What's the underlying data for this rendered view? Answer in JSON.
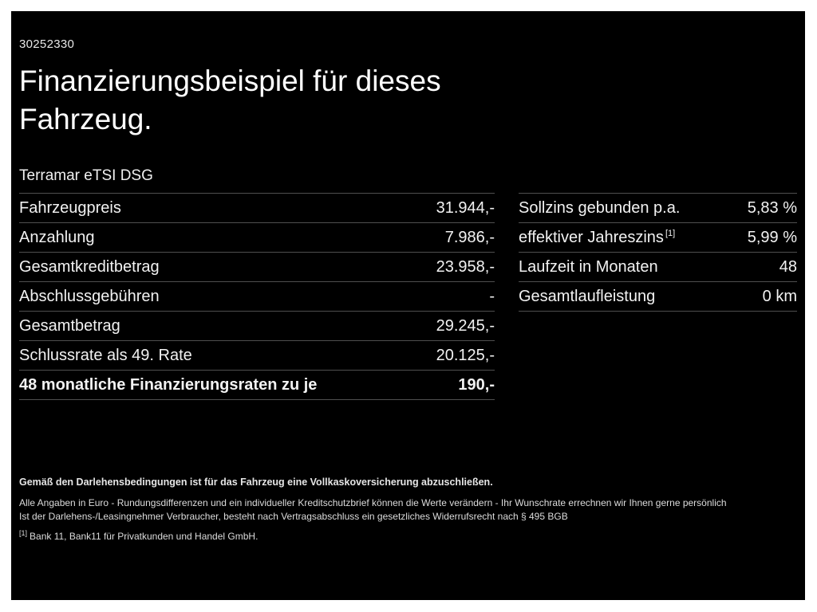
{
  "meta": {
    "offer_id": "30252330"
  },
  "header": {
    "title_line1": "Finanzierungsbeispiel für dieses",
    "title_line2": "Fahrzeug.",
    "model": "Terramar eTSI DSG"
  },
  "financing": {
    "left_rows": [
      {
        "label": "Fahrzeugpreis",
        "value": "31.944,-"
      },
      {
        "label": "Anzahlung",
        "value": "7.986,-"
      },
      {
        "label": "Gesamtkreditbetrag",
        "value": "23.958,-"
      },
      {
        "label": "Abschlussgebühren",
        "value": "-"
      },
      {
        "label": "Gesamtbetrag",
        "value": "29.245,-"
      },
      {
        "label": "Schlussrate als 49. Rate",
        "value": "20.125,-"
      },
      {
        "label": "48 monatliche Finanzierungsraten zu je",
        "value": "190,-"
      }
    ],
    "right_rows": [
      {
        "label": "Sollzins gebunden p.a.",
        "value": "5,83 %"
      },
      {
        "label": "effektiver Jahreszins",
        "sup": "[1]",
        "value": "5,99 %"
      },
      {
        "label": "Laufzeit in Monaten",
        "value": "48"
      },
      {
        "label": "Gesamtlaufleistung",
        "value": "0 km"
      }
    ]
  },
  "footnotes": {
    "insurance": "Gemäß den Darlehensbedingungen ist für das Fahrzeug eine Vollkaskoversicherung abzuschließen.",
    "disclaimer": "Alle Angaben in Euro - Rundungsdifferenzen und ein individueller Kreditschutzbrief können die Werte verändern - Ihr Wunschrate errechnen wir Ihnen gerne persönlich",
    "withdrawal": "Ist der Darlehens-/Leasingnehmer Verbraucher, besteht nach Vertragsabschluss ein gesetzliches Widerrufsrecht nach § 495 BGB",
    "bank_marker": "[1]",
    "bank": "Bank 11, Bank11 für Privatkunden und Handel GmbH."
  },
  "colors": {
    "background": "#000000",
    "frame": "#ffffff",
    "text": "#f2f2f2",
    "divider": "#4f4f4f"
  }
}
